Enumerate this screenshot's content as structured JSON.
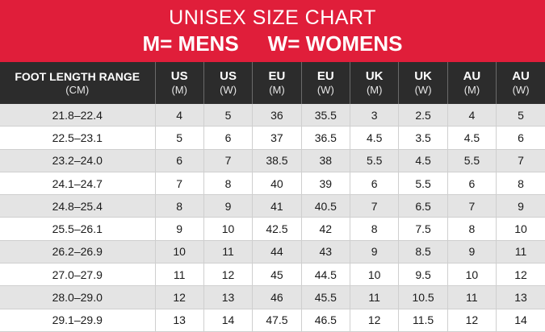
{
  "banner": {
    "title": "UNISEX SIZE CHART",
    "mens": "M= MENS",
    "womens": "W= WOMENS"
  },
  "headers": [
    {
      "line1": "FOOT LENGTH RANGE",
      "line2": "(CM)"
    },
    {
      "line1": "US",
      "line2": "(M)"
    },
    {
      "line1": "US",
      "line2": "(W)"
    },
    {
      "line1": "EU",
      "line2": "(M)"
    },
    {
      "line1": "EU",
      "line2": "(W)"
    },
    {
      "line1": "UK",
      "line2": "(M)"
    },
    {
      "line1": "UK",
      "line2": "(W)"
    },
    {
      "line1": "AU",
      "line2": "(M)"
    },
    {
      "line1": "AU",
      "line2": "(W)"
    }
  ],
  "rows": [
    [
      "21.8–22.4",
      "4",
      "5",
      "36",
      "35.5",
      "3",
      "2.5",
      "4",
      "5"
    ],
    [
      "22.5–23.1",
      "5",
      "6",
      "37",
      "36.5",
      "4.5",
      "3.5",
      "4.5",
      "6"
    ],
    [
      "23.2–24.0",
      "6",
      "7",
      "38.5",
      "38",
      "5.5",
      "4.5",
      "5.5",
      "7"
    ],
    [
      "24.1–24.7",
      "7",
      "8",
      "40",
      "39",
      "6",
      "5.5",
      "6",
      "8"
    ],
    [
      "24.8–25.4",
      "8",
      "9",
      "41",
      "40.5",
      "7",
      "6.5",
      "7",
      "9"
    ],
    [
      "25.5–26.1",
      "9",
      "10",
      "42.5",
      "42",
      "8",
      "7.5",
      "8",
      "10"
    ],
    [
      "26.2–26.9",
      "10",
      "11",
      "44",
      "43",
      "9",
      "8.5",
      "9",
      "11"
    ],
    [
      "27.0–27.9",
      "11",
      "12",
      "45",
      "44.5",
      "10",
      "9.5",
      "10",
      "12"
    ],
    [
      "28.0–29.0",
      "12",
      "13",
      "46",
      "45.5",
      "11",
      "10.5",
      "11",
      "13"
    ],
    [
      "29.1–29.9",
      "13",
      "14",
      "47.5",
      "46.5",
      "12",
      "11.5",
      "12",
      "14"
    ]
  ],
  "colors": {
    "banner": "#e01e3a",
    "header": "#2c2c2c",
    "stripe": "#e4e4e4"
  }
}
